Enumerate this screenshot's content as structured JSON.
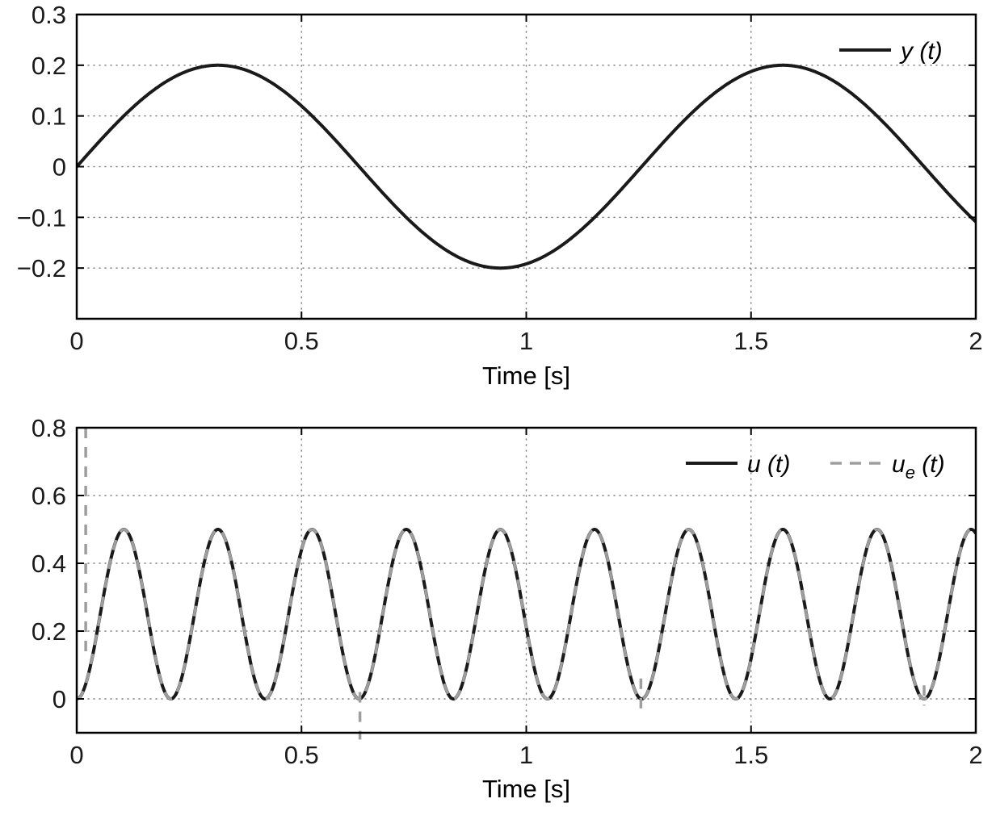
{
  "figure": {
    "background": "#ffffff",
    "axis_color": "#000000",
    "grid_color": "#7f7f7f",
    "tick_label_color": "#1a1a1a"
  },
  "chart_data": [
    {
      "type": "line",
      "title": "",
      "xlabel": "Time [s]",
      "ylabel": "",
      "xlim": [
        0,
        2
      ],
      "ylim": [
        -0.3,
        0.3
      ],
      "xticks": [
        0,
        0.5,
        1,
        1.5,
        2
      ],
      "xtick_labels": [
        "0",
        "0.5",
        "1",
        "1.5",
        "2"
      ],
      "yticks": [
        -0.2,
        -0.1,
        0,
        0.1,
        0.2,
        0.3
      ],
      "ytick_labels": [
        "−0.2",
        "−0.1",
        "0",
        "0.1",
        "0.2",
        "0.3"
      ],
      "grid": "dotted",
      "legend_position": "top-right",
      "series": [
        {
          "name": "y(t)",
          "legend": {
            "base": "y",
            "sub": "",
            "args": " (t)"
          },
          "line_style": "solid",
          "color": "#1a1a1a",
          "line_width": 4,
          "signal": {
            "form": "offset + amplitude*sin(omega*t + phase)",
            "offset": 0,
            "amplitude": 0.2,
            "omega": 5,
            "phase": 0,
            "t_start": 0,
            "t_end": 2
          }
        }
      ]
    },
    {
      "type": "line",
      "title": "",
      "xlabel": "Time [s]",
      "ylabel": "",
      "xlim": [
        0,
        2
      ],
      "ylim": [
        -0.1,
        0.8
      ],
      "xticks": [
        0,
        0.5,
        1,
        1.5,
        2
      ],
      "xtick_labels": [
        "0",
        "0.5",
        "1",
        "1.5",
        "2"
      ],
      "yticks": [
        0,
        0.2,
        0.4,
        0.6,
        0.8
      ],
      "ytick_labels": [
        "0",
        "0.2",
        "0.4",
        "0.6",
        "0.8"
      ],
      "grid": "dotted",
      "legend_position": "top-right",
      "series": [
        {
          "name": "u(t)",
          "legend": {
            "base": "u",
            "sub": "",
            "args": " (t)"
          },
          "line_style": "solid",
          "color": "#1a1a1a",
          "line_width": 4,
          "signal": {
            "form": "offset + amplitude*sin(omega*t + phase)",
            "offset": 0.25,
            "amplitude": 0.25,
            "omega": 30,
            "phase": -1.5707963,
            "t_start": 0,
            "t_end": 2
          }
        },
        {
          "name": "u_e(t)",
          "legend": {
            "base": "u",
            "sub": "e",
            "args": " (t)"
          },
          "line_style": "dashed",
          "color": "#9e9e9e",
          "line_width": 3.5,
          "dash": [
            13,
            11
          ],
          "signal": {
            "form": "offset + amplitude*sin(omega*t + phase)",
            "offset": 0.25,
            "amplitude": 0.25,
            "omega": 30,
            "phase": -1.5707963,
            "t_start": 0,
            "t_end": 2
          },
          "transients": [
            {
              "t": 0.02,
              "y_from": 0.8,
              "y_to": 0.13
            },
            {
              "t": 0.63,
              "y_from": 0.02,
              "y_to": -0.12
            },
            {
              "t": 1.255,
              "y_from": 0.06,
              "y_to": -0.03
            },
            {
              "t": 1.885,
              "y_from": 0.04,
              "y_to": -0.02
            }
          ]
        }
      ]
    }
  ]
}
